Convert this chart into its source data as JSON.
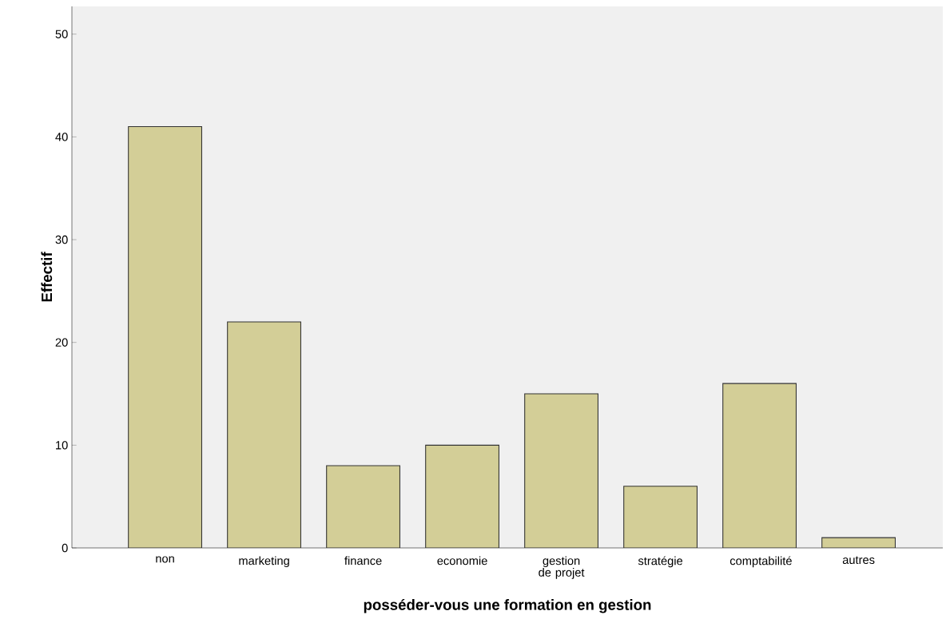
{
  "chart_data": {
    "type": "bar",
    "xlabel": "posséder-vous une formation en gestion",
    "ylabel": "Effectif",
    "categories": [
      "non",
      "marketing",
      "finance",
      "economie",
      "gestion de projet",
      "stratégie",
      "comptabilité",
      "autres"
    ],
    "values": [
      41,
      22,
      8,
      10,
      15,
      6,
      16,
      1
    ],
    "color": "#d3ce97",
    "ylim": [
      0,
      52.7
    ],
    "yticks": [
      0,
      10,
      20,
      30,
      40,
      50
    ],
    "grid": false
  }
}
